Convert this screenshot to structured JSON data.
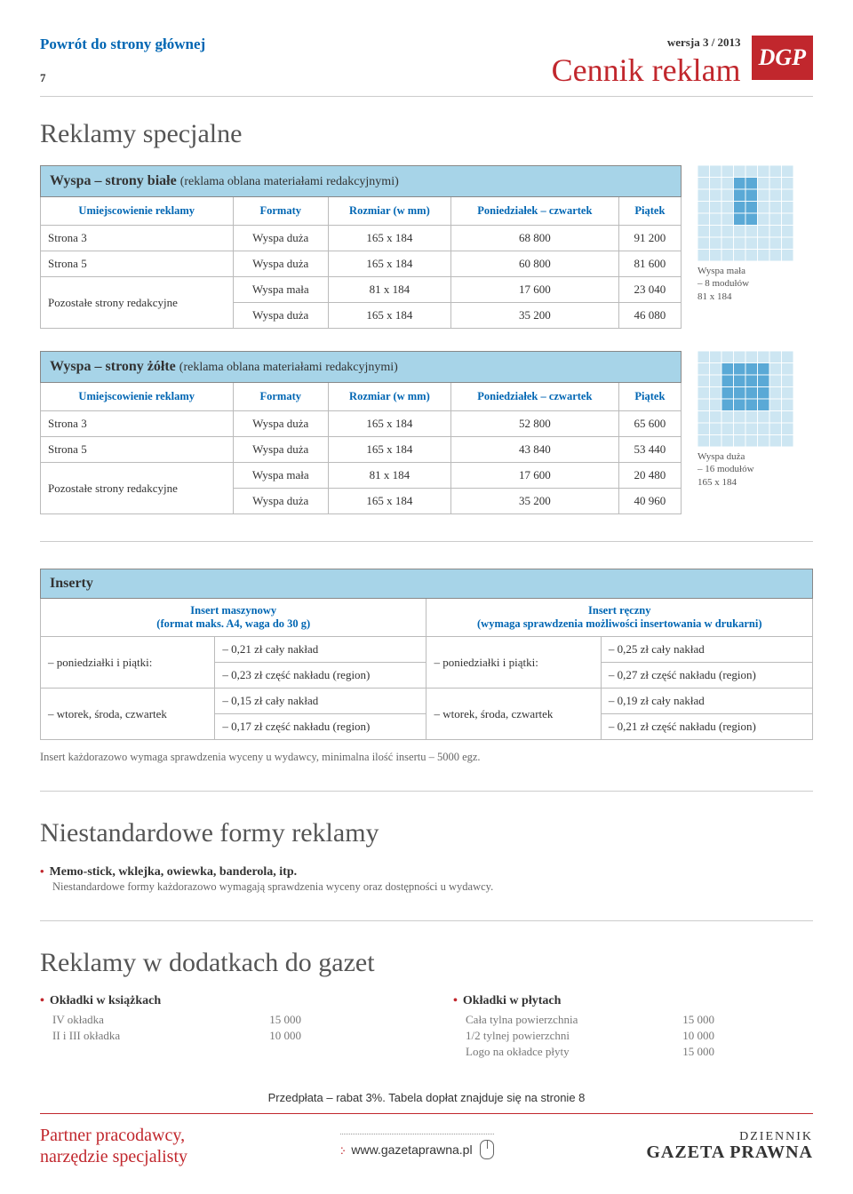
{
  "header": {
    "return_link": "Powrót do strony głównej",
    "page_number": "7",
    "version": "wersja 3 / 2013",
    "title": "Cennik reklam",
    "logo": "DGP"
  },
  "section1_title": "Reklamy specjalne",
  "table1": {
    "title": "Wyspa – strony białe",
    "subtitle": "(reklama oblana materiałami redakcyjnymi)",
    "headers": [
      "Umiejscowienie reklamy",
      "Formaty",
      "Rozmiar (w mm)",
      "Poniedziałek – czwartek",
      "Piątek"
    ],
    "rows": [
      {
        "loc": "Strona 3",
        "fmt": "Wyspa duża",
        "size": "165 x 184",
        "mon": "68 800",
        "fri": "91 200"
      },
      {
        "loc": "Strona 5",
        "fmt": "Wyspa duża",
        "size": "165 x 184",
        "mon": "60 800",
        "fri": "81 600"
      }
    ],
    "rowspan_label": "Pozostałe strony redakcyjne",
    "rowspan_rows": [
      {
        "fmt": "Wyspa mała",
        "size": "81 x 184",
        "mon": "17 600",
        "fri": "23 040"
      },
      {
        "fmt": "Wyspa duża",
        "size": "165 x 184",
        "mon": "35 200",
        "fri": "46 080"
      }
    ]
  },
  "diagram1": {
    "label1": "Wyspa mała",
    "label2": "– 8 modułów",
    "label3": "81 x 184"
  },
  "table2": {
    "title": "Wyspa – strony żółte",
    "subtitle": "(reklama oblana materiałami redakcyjnymi)",
    "headers": [
      "Umiejscowienie reklamy",
      "Formaty",
      "Rozmiar (w mm)",
      "Poniedziałek – czwartek",
      "Piątek"
    ],
    "rows": [
      {
        "loc": "Strona 3",
        "fmt": "Wyspa duża",
        "size": "165 x 184",
        "mon": "52 800",
        "fri": "65 600"
      },
      {
        "loc": "Strona 5",
        "fmt": "Wyspa duża",
        "size": "165 x 184",
        "mon": "43 840",
        "fri": "53 440"
      }
    ],
    "rowspan_label": "Pozostałe strony redakcyjne",
    "rowspan_rows": [
      {
        "fmt": "Wyspa mała",
        "size": "81 x 184",
        "mon": "17 600",
        "fri": "20 480"
      },
      {
        "fmt": "Wyspa duża",
        "size": "165 x 184",
        "mon": "35 200",
        "fri": "40 960"
      }
    ]
  },
  "diagram2": {
    "label1": "Wyspa duża",
    "label2": "– 16 modułów",
    "label3": "165 x 184"
  },
  "inserty": {
    "title": "Inserty",
    "left_header1": "Insert maszynowy",
    "left_header2": "(format maks. A4, waga do 30 g)",
    "right_header1": "Insert ręczny",
    "right_header2": "(wymaga sprawdzenia możliwości insertowania w drukarni)",
    "row1_left": "– poniedziałki i piątki:",
    "row1_a": "– 0,21 zł cały nakład",
    "row1_b": "– 0,23 zł część nakładu (region)",
    "row1_right": "– poniedziałki i piątki:",
    "row1_c": "– 0,25 zł cały nakład",
    "row1_d": "– 0,27 zł część nakładu (region)",
    "row2_left": "– wtorek, środa, czwartek",
    "row2_a": "– 0,15 zł cały nakład",
    "row2_b": "– 0,17 zł część nakładu (region)",
    "row2_right": "– wtorek, środa, czwartek",
    "row2_c": "– 0,19 zł cały nakład",
    "row2_d": "– 0,21 zł część nakładu (region)",
    "note": "Insert każdorazowo wymaga sprawdzenia wyceny u wydawcy, minimalna ilość insertu – 5000 egz."
  },
  "niestd": {
    "title": "Niestandardowe formy reklamy",
    "item1": "Memo-stick, wklejka, owiewka, banderola, itp.",
    "item1_sub": "Niestandardowe formy każdorazowo wymagają sprawdzenia wyceny oraz dostępności u wydawcy."
  },
  "dodatki": {
    "title": "Reklamy w dodatkach do gazet",
    "col1_head": "Okładki w książkach",
    "col1_rows": [
      {
        "label": "IV okładka",
        "val": "15 000"
      },
      {
        "label": "II i III okładka",
        "val": "10 000"
      }
    ],
    "col2_head": "Okładki w płytach",
    "col2_rows": [
      {
        "label": "Cała tylna powierzchnia",
        "val": "15 000"
      },
      {
        "label": "1/2 tylnej powierzchni",
        "val": "10 000"
      },
      {
        "label": "Logo na okładce płyty",
        "val": "15 000"
      }
    ]
  },
  "prepay": "Przedpłata – rabat 3%. Tabela dopłat znajduje się na stronie 8",
  "footer": {
    "left1": "Partner pracodawcy,",
    "left2": "narzędzie specjalisty",
    "url": "www.gazetaprawna.pl",
    "brand1": "DZIENNIK",
    "brand2": "GAZETA PRAWNA"
  },
  "colors": {
    "blue": "#0066b3",
    "red": "#c1272d",
    "table_header_bg": "#a7d4e8",
    "grid_fill": "#5aa9d6",
    "grid_light": "#cde6f2"
  }
}
